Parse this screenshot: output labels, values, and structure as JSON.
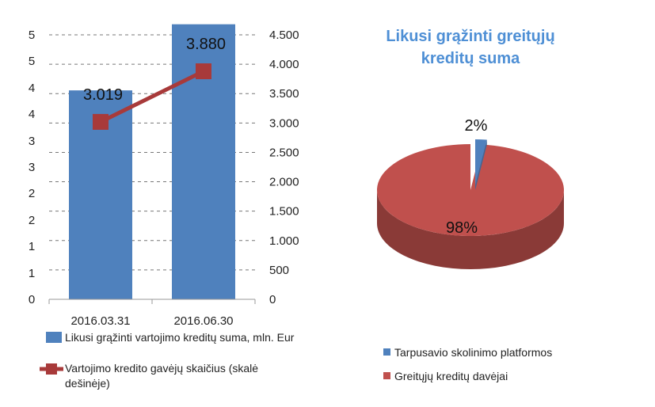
{
  "chart_data": [
    {
      "type": "bar",
      "categories": [
        "2016.03.31",
        "2016.06.30"
      ],
      "series": [
        {
          "name": "Likusi grąžinti vartojimo kreditų suma, mln. Eur",
          "type": "bar",
          "axis": "left",
          "values": [
            3.95,
            5.2
          ],
          "color": "#4f81bd"
        },
        {
          "name": "Vartojimo kredito gavėjų skaičius (skalė dešinėje)",
          "type": "line",
          "axis": "right",
          "values": [
            3019,
            3880
          ],
          "data_labels": [
            "3.019",
            "3.880"
          ],
          "color": "#a83a3a"
        }
      ],
      "left_axis": {
        "ylim": [
          0,
          5.2
        ],
        "ticks": [
          0,
          0.5,
          1,
          1.5,
          2,
          2.5,
          3,
          3.5,
          4,
          4.5,
          5
        ],
        "tick_labels": [
          "0",
          "1",
          "1",
          "2",
          "2",
          "3",
          "3",
          "4",
          "4",
          "5",
          "5"
        ]
      },
      "right_axis": {
        "ylim": [
          0,
          4500
        ],
        "ticks": [
          0,
          500,
          1000,
          1500,
          2000,
          2500,
          3000,
          3500,
          4000,
          4500
        ],
        "tick_labels": [
          "0",
          "500",
          "1.000",
          "1.500",
          "2.000",
          "2.500",
          "3.000",
          "3.500",
          "4.000",
          "4.500"
        ]
      },
      "grid": true,
      "legend_placement": "bottom",
      "legend": [
        "Likusi grąžinti vartojimo kreditų suma, mln. Eur",
        "Vartojimo kredito gavėjų skaičius (skalė",
        "dešinėje)"
      ]
    },
    {
      "type": "pie",
      "title_lines": [
        "Likusi grąžinti greitųjų",
        "kreditų suma"
      ],
      "categories": [
        "Tarpusavio skolinimo platformos",
        "Greitųjų kreditų davėjai"
      ],
      "values": [
        2,
        98
      ],
      "labels": [
        "2%",
        "98%"
      ],
      "colors": [
        "#4f81bd",
        "#c0504d"
      ],
      "style": "3d",
      "legend_placement": "bottom-left"
    }
  ]
}
